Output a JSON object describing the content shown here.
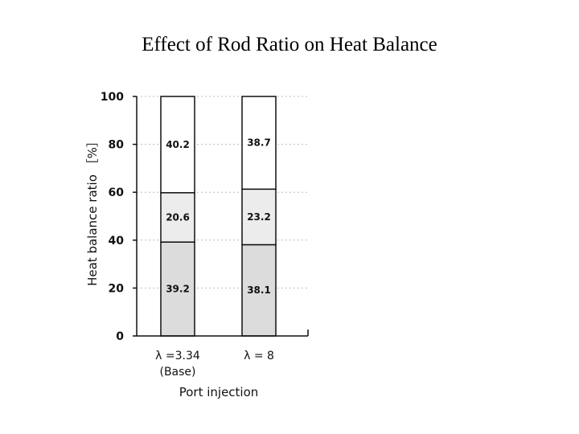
{
  "title": "Effect of Rod Ratio on Heat Balance",
  "chart_data": {
    "type": "bar",
    "stacked": true,
    "categories": [
      {
        "line1": "λ =3.34",
        "line2": "(Base)"
      },
      {
        "line1": "λ = 8",
        "line2": ""
      }
    ],
    "series": [
      {
        "name": "lower",
        "values": [
          39.2,
          38.1
        ],
        "color": "#dcdcdc"
      },
      {
        "name": "middle",
        "values": [
          20.6,
          23.2
        ],
        "color": "#ececec"
      },
      {
        "name": "upper",
        "values": [
          40.2,
          38.7
        ],
        "color": "#ffffff"
      }
    ],
    "yticks": [
      0,
      20,
      40,
      60,
      80,
      100
    ],
    "ylim": [
      0,
      100
    ],
    "xlabel": "Port injection",
    "ylabel": "Heat balance ratio ［%］"
  }
}
